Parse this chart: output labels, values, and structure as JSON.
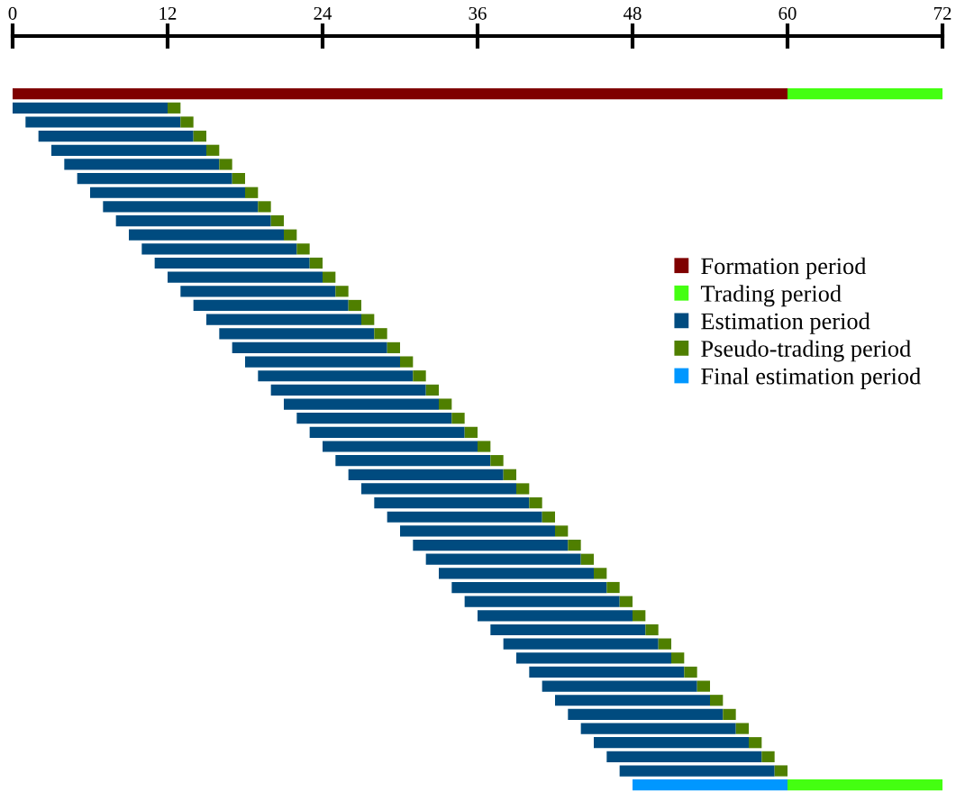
{
  "chart_data": {
    "type": "bar",
    "orientation": "horizontal",
    "stacked": true,
    "categories": [
      null,
      null,
      null,
      null,
      null,
      null,
      null,
      null,
      null,
      null,
      null,
      null,
      null,
      null,
      null,
      null,
      null,
      null,
      null,
      null,
      null,
      null,
      null,
      null,
      null,
      null,
      null,
      null,
      null,
      null,
      null,
      null,
      null,
      null,
      null,
      null,
      null,
      null,
      null,
      null,
      null,
      null,
      null,
      null,
      null,
      null,
      null,
      null,
      null,
      null
    ],
    "series": [
      {
        "name": "Formation period",
        "color": "#7f0000",
        "base": [
          0,
          null,
          null,
          null,
          null,
          null,
          null,
          null,
          null,
          null,
          null,
          null,
          null,
          null,
          null,
          null,
          null,
          null,
          null,
          null,
          null,
          null,
          null,
          null,
          null,
          null,
          null,
          null,
          null,
          null,
          null,
          null,
          null,
          null,
          null,
          null,
          null,
          null,
          null,
          null,
          null,
          null,
          null,
          null,
          null,
          null,
          null,
          null,
          null,
          null
        ],
        "values": [
          60,
          null,
          null,
          null,
          null,
          null,
          null,
          null,
          null,
          null,
          null,
          null,
          null,
          null,
          null,
          null,
          null,
          null,
          null,
          null,
          null,
          null,
          null,
          null,
          null,
          null,
          null,
          null,
          null,
          null,
          null,
          null,
          null,
          null,
          null,
          null,
          null,
          null,
          null,
          null,
          null,
          null,
          null,
          null,
          null,
          null,
          null,
          null,
          null,
          null
        ]
      },
      {
        "name": "Trading period",
        "color": "#44ff11",
        "values": [
          12,
          null,
          null,
          null,
          null,
          null,
          null,
          null,
          null,
          null,
          null,
          null,
          null,
          null,
          null,
          null,
          null,
          null,
          null,
          null,
          null,
          null,
          null,
          null,
          null,
          null,
          null,
          null,
          null,
          null,
          null,
          null,
          null,
          null,
          null,
          null,
          null,
          null,
          null,
          null,
          null,
          null,
          null,
          null,
          null,
          null,
          null,
          null,
          null,
          null
        ]
      },
      {
        "name": "Estimation period",
        "color": "#004b7f",
        "base": [
          null,
          0,
          1,
          2,
          3,
          4,
          5,
          6,
          7,
          8,
          9,
          10,
          11,
          12,
          13,
          14,
          15,
          16,
          17,
          18,
          19,
          20,
          21,
          22,
          23,
          24,
          25,
          26,
          27,
          28,
          29,
          30,
          31,
          32,
          33,
          34,
          35,
          36,
          37,
          38,
          39,
          40,
          41,
          42,
          43,
          44,
          45,
          46,
          47,
          null
        ],
        "values": [
          null,
          12,
          12,
          12,
          12,
          12,
          12,
          12,
          12,
          12,
          12,
          12,
          12,
          12,
          12,
          12,
          12,
          12,
          12,
          12,
          12,
          12,
          12,
          12,
          12,
          12,
          12,
          12,
          12,
          12,
          12,
          12,
          12,
          12,
          12,
          12,
          12,
          12,
          12,
          12,
          12,
          12,
          12,
          12,
          12,
          12,
          12,
          12,
          12,
          null
        ]
      },
      {
        "name": "Pseudo-trading period",
        "color": "#4f7f00",
        "values": [
          null,
          1,
          1,
          1,
          1,
          1,
          1,
          1,
          1,
          1,
          1,
          1,
          1,
          1,
          1,
          1,
          1,
          1,
          1,
          1,
          1,
          1,
          1,
          1,
          1,
          1,
          1,
          1,
          1,
          1,
          1,
          1,
          1,
          1,
          1,
          1,
          1,
          1,
          1,
          1,
          1,
          1,
          1,
          1,
          1,
          1,
          1,
          1,
          1,
          null
        ]
      },
      {
        "name": "Final estimation period",
        "color": "#0097ff",
        "base": [
          null,
          null,
          null,
          null,
          null,
          null,
          null,
          null,
          null,
          null,
          null,
          null,
          null,
          null,
          null,
          null,
          null,
          null,
          null,
          null,
          null,
          null,
          null,
          null,
          null,
          null,
          null,
          null,
          null,
          null,
          null,
          null,
          null,
          null,
          null,
          null,
          null,
          null,
          null,
          null,
          null,
          null,
          null,
          null,
          null,
          null,
          null,
          null,
          null,
          48
        ],
        "values": [
          null,
          null,
          null,
          null,
          null,
          null,
          null,
          null,
          null,
          null,
          null,
          null,
          null,
          null,
          null,
          null,
          null,
          null,
          null,
          null,
          null,
          null,
          null,
          null,
          null,
          null,
          null,
          null,
          null,
          null,
          null,
          null,
          null,
          null,
          null,
          null,
          null,
          null,
          null,
          null,
          null,
          null,
          null,
          null,
          null,
          null,
          null,
          null,
          null,
          12
        ]
      },
      {
        "color": "#44ff11",
        "values": [
          null,
          null,
          null,
          null,
          null,
          null,
          null,
          null,
          null,
          null,
          null,
          null,
          null,
          null,
          null,
          null,
          null,
          null,
          null,
          null,
          null,
          null,
          null,
          null,
          null,
          null,
          null,
          null,
          null,
          null,
          null,
          null,
          null,
          null,
          null,
          null,
          null,
          null,
          null,
          null,
          null,
          null,
          null,
          null,
          null,
          null,
          null,
          null,
          null,
          12
        ]
      }
    ],
    "xlim": [
      0,
      72
    ],
    "xticks": [
      0,
      12,
      24,
      36,
      48,
      60,
      72
    ],
    "tick_labels": "x",
    "legend": "right",
    "grid": false
  }
}
